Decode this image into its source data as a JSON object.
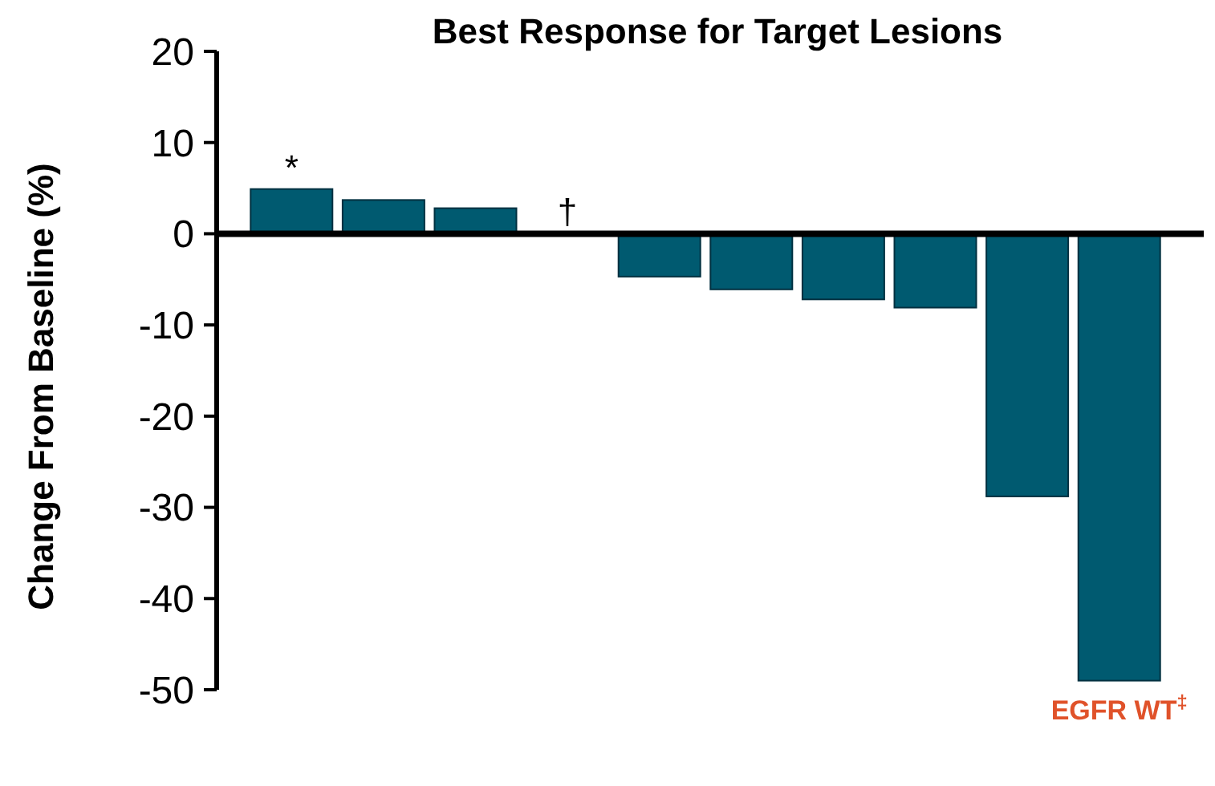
{
  "chart_data": {
    "type": "bar",
    "title": "Best Response for Target Lesions",
    "ylabel": "Change From Baseline (%)",
    "categories": [
      null,
      null,
      null,
      null,
      null,
      null,
      null,
      null,
      null,
      null
    ],
    "values": [
      4.9,
      3.7,
      2.8,
      0,
      -4.7,
      -6.1,
      -7.2,
      -8.1,
      -28.8,
      -49.0
    ],
    "value_labels": [
      "*",
      null,
      null,
      "†",
      null,
      null,
      null,
      null,
      null,
      "EGFR WT$^{‡}$"
    ],
    "color": "#005a70",
    "ylim": [
      -50,
      20
    ],
    "yticks": [
      20,
      10,
      0,
      -10,
      -20,
      -30,
      -40,
      -50
    ]
  }
}
